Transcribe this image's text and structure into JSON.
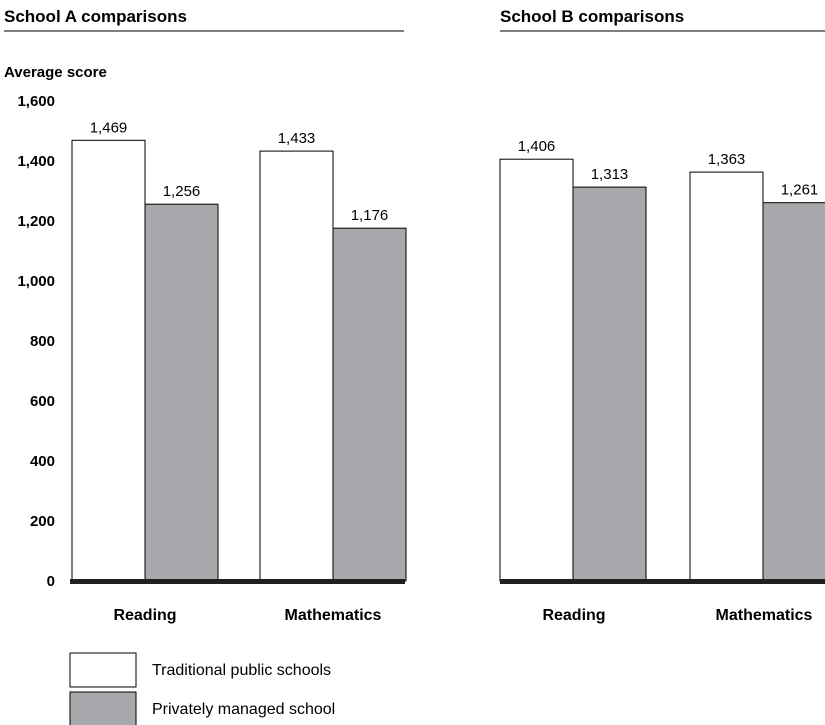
{
  "legend": {
    "items": [
      {
        "label": "Traditional public schools",
        "color": "#ffffff"
      },
      {
        "label": "Privately managed school",
        "color": "#a7a9ac"
      }
    ]
  },
  "chart_data": [
    {
      "type": "bar",
      "title": "School A comparisons",
      "ylabel": "Average score",
      "xlabel": "",
      "ylim": [
        0,
        1600
      ],
      "yticks": [
        "0",
        "200",
        "400",
        "600",
        "800",
        "1,000",
        "1,200",
        "1,400",
        "1,600"
      ],
      "categories": [
        "Reading",
        "Mathematics"
      ],
      "series": [
        {
          "name": "Traditional public schools",
          "color": "#ffffff",
          "values": [
            1469,
            1433
          ],
          "labels": [
            "1,469",
            "1,433"
          ]
        },
        {
          "name": "Privately managed school",
          "color": "#a7a9ac",
          "values": [
            1256,
            1176
          ],
          "labels": [
            "1,256",
            "1,176"
          ]
        }
      ]
    },
    {
      "type": "bar",
      "title": "School B comparisons",
      "xlabel": "",
      "ylim": [
        0,
        1600
      ],
      "categories": [
        "Reading",
        "Mathematics"
      ],
      "series": [
        {
          "name": "Traditional public schools",
          "color": "#ffffff",
          "values": [
            1406,
            1363
          ],
          "labels": [
            "1,406",
            "1,363"
          ]
        },
        {
          "name": "Privately managed school",
          "color": "#a7a9ac",
          "values": [
            1313,
            1261
          ],
          "labels": [
            "1,313",
            "1,261"
          ]
        }
      ]
    }
  ]
}
